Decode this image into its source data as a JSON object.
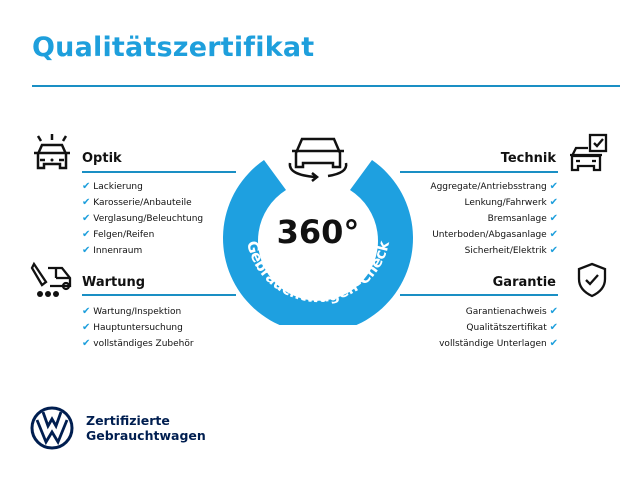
{
  "title": "Qualitätszertifikat",
  "badge": {
    "value": "360°",
    "arc_text": "Gebrauchtwagen-Check",
    "color": "#1ea0e0"
  },
  "optik": {
    "title": "Optik",
    "items": [
      "Lackierung",
      "Karosserie/Anbauteile",
      "Verglasung/Beleuchtung",
      "Felgen/Reifen",
      "Innenraum"
    ]
  },
  "wartung": {
    "title": "Wartung",
    "items": [
      "Wartung/Inspektion",
      "Hauptuntersuchung",
      "vollständiges Zubehör"
    ]
  },
  "technik": {
    "title": "Technik",
    "items": [
      "Aggregate/Antriebsstrang",
      "Lenkung/Fahrwerk",
      "Bremsanlage",
      "Unterboden/Abgasanlage",
      "Sicherheit/Elektrik"
    ]
  },
  "garantie": {
    "title": "Garantie",
    "items": [
      "Garantienachweis",
      "Qualitätszertifikat",
      "vollständige Unterlagen"
    ]
  },
  "footer": {
    "line1": "Zertifizierte",
    "line2": "Gebrauchtwagen"
  },
  "check_mark": "✔",
  "accent": "#1a8fc4"
}
